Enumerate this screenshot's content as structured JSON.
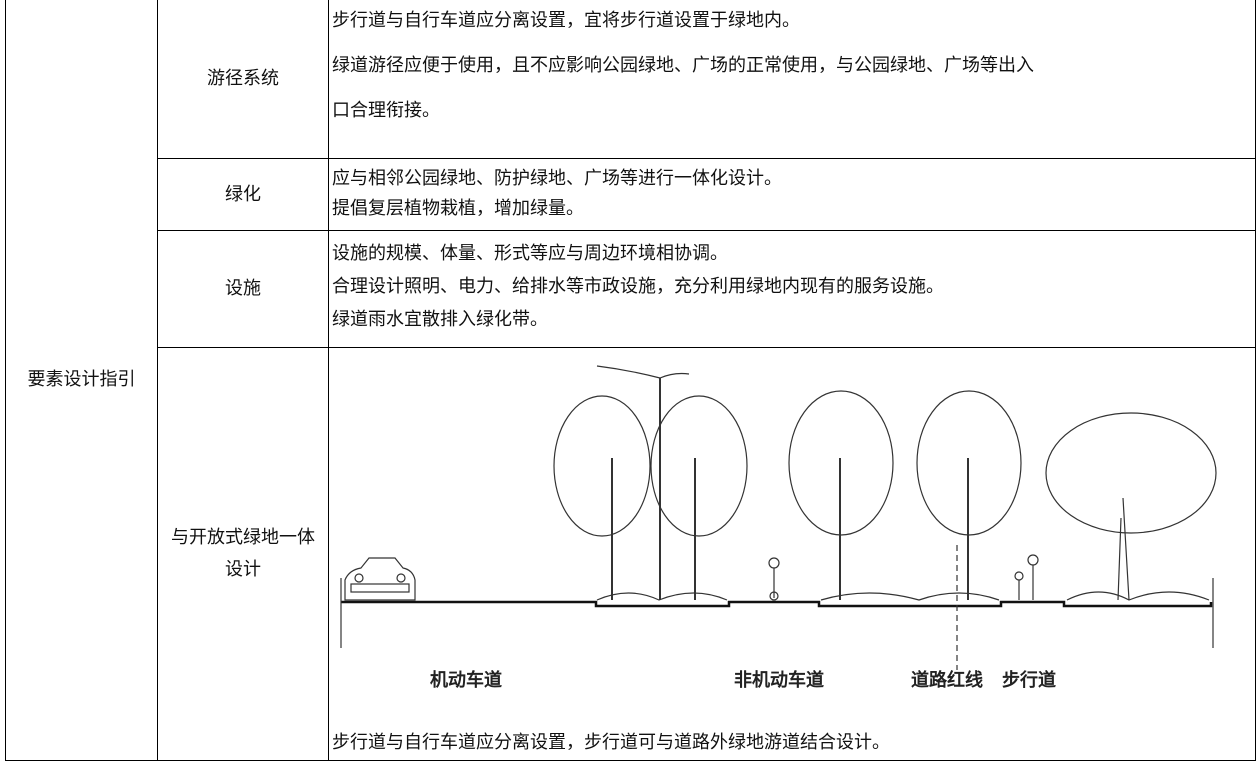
{
  "table": {
    "section": "要素设计指引",
    "rows": [
      {
        "label": "游径系统",
        "lines": [
          "步行道与自行车道应分离设置，宜将步行道设置于绿地内。",
          "绿道游径应便于使用，且不应影响公园绿地、广场的正常使用，与公园绿地、广场等出入",
          "口合理衔接。"
        ]
      },
      {
        "label": "绿化",
        "lines": [
          "应与相邻公园绿地、防护绿地、广场等进行一体化设计。",
          "提倡复层植物栽植，增加绿量。"
        ]
      },
      {
        "label": "设施",
        "lines": [
          "设施的规模、体量、形式等应与周边环境相协调。",
          "合理设计照明、电力、给排水等市政设施，充分利用绿地内现有的服务设施。",
          "绿道雨水宜散排入绿化带。"
        ]
      },
      {
        "label": "与开放式绿地一体设计",
        "figure": {
          "labels": [
            "机动车道",
            "非机动车道",
            "道路红线",
            "步行道"
          ]
        },
        "lines": [
          "步行道与自行车道应分离设置，步行道可与道路外绿地游道结合设计。"
        ]
      }
    ]
  }
}
